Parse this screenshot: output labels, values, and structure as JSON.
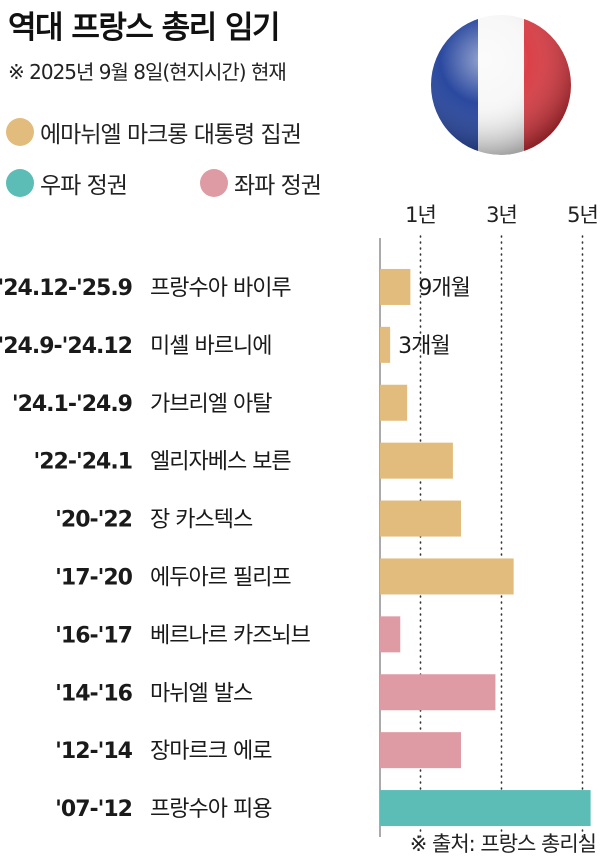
{
  "header": {
    "title": "역대 프랑스 총리 임기",
    "subtitle": "※ 2025년 9월 8일(현지시간) 현재"
  },
  "legend": [
    {
      "label": "에마뉘엘 마크롱 대통령 집권",
      "color": "#E2BC7C"
    },
    {
      "label": "우파 정권",
      "color": "#5BBDB6"
    },
    {
      "label": "좌파 정권",
      "color": "#DE9BA3"
    }
  ],
  "source": "※ 출처: 프랑스 총리실",
  "flag_icon": "france-flag-ball-icon",
  "chart_data": {
    "type": "bar",
    "orientation": "horizontal",
    "unit": "years",
    "x_ticks": [
      {
        "value": 1,
        "label": "1년"
      },
      {
        "value": 3,
        "label": "3년"
      },
      {
        "value": 5,
        "label": "5년"
      }
    ],
    "xlim": [
      0,
      5.2
    ],
    "bars": [
      {
        "period": "'24.12-'25.9",
        "name": "프랑수아 바이루",
        "value": 0.75,
        "group": 0,
        "value_label": "9개월"
      },
      {
        "period": "'24.9-'24.12",
        "name": "미셸 바르니에",
        "value": 0.25,
        "group": 0,
        "value_label": "3개월"
      },
      {
        "period": "'24.1-'24.9",
        "name": "가브리엘 아탈",
        "value": 0.67,
        "group": 0,
        "value_label": ""
      },
      {
        "period": "'22-'24.1",
        "name": "엘리자베스 보른",
        "value": 1.8,
        "group": 0,
        "value_label": ""
      },
      {
        "period": "'20-'22",
        "name": "장 카스텍스",
        "value": 2.0,
        "group": 0,
        "value_label": ""
      },
      {
        "period": "'17-'20",
        "name": "에두아르 필리프",
        "value": 3.3,
        "group": 0,
        "value_label": ""
      },
      {
        "period": "'16-'17",
        "name": "베르나르 카즈뇌브",
        "value": 0.5,
        "group": 2,
        "value_label": ""
      },
      {
        "period": "'14-'16",
        "name": "마뉘엘 발스",
        "value": 2.85,
        "group": 2,
        "value_label": ""
      },
      {
        "period": "'12-'14",
        "name": "장마르크 에로",
        "value": 2.0,
        "group": 2,
        "value_label": ""
      },
      {
        "period": "'07-'12",
        "name": "프랑수아 피용",
        "value": 5.2,
        "group": 1,
        "value_label": ""
      }
    ]
  }
}
